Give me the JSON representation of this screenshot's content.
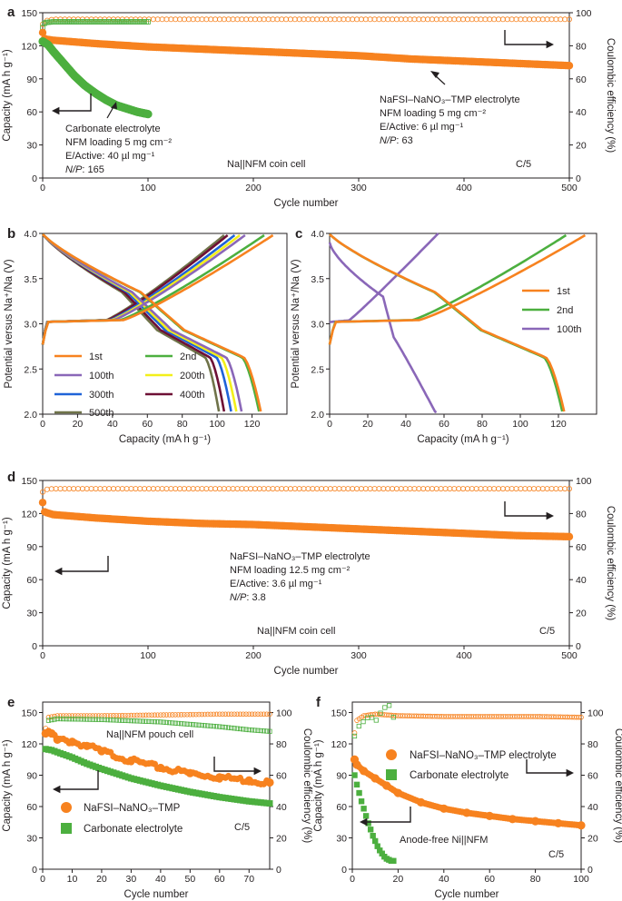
{
  "colors": {
    "orange": "#f7821f",
    "green": "#4caf3f",
    "purple": "#8a67b8",
    "blue": "#1f63d8",
    "yellow": "#f3ef1a",
    "darkred": "#6e1035",
    "olive": "#6f7349",
    "axis": "#231f20"
  },
  "chart_data": [
    {
      "panel": "a",
      "type": "scatter",
      "xlabel": "Cycle number",
      "ylabel": "Capacity (mA h g⁻¹)",
      "y2label": "Coulombic efficiency (%)",
      "xlim": [
        0,
        500
      ],
      "ylim": [
        0,
        150
      ],
      "y2lim": [
        0,
        100
      ],
      "xticks": [
        0,
        100,
        200,
        300,
        400,
        500
      ],
      "yticks": [
        0,
        30,
        60,
        90,
        120,
        150
      ],
      "y2ticks": [
        0,
        20,
        40,
        60,
        80,
        100
      ],
      "series": [
        {
          "name": "NaFSI–NaNO₃–TMP capacity",
          "color": "orange",
          "axis": "left",
          "x": [
            0,
            1,
            3,
            10,
            50,
            100,
            150,
            200,
            250,
            300,
            350,
            400,
            450,
            500
          ],
          "values": [
            132,
            127,
            126,
            125,
            122,
            119,
            117,
            115,
            113,
            111,
            108,
            106,
            104,
            102
          ]
        },
        {
          "name": "NaFSI–NaNO₃–TMP CE",
          "color": "orange",
          "axis": "right",
          "hollow": true,
          "x": [
            0,
            2,
            10,
            100,
            200,
            300,
            400,
            500
          ],
          "values": [
            93,
            95,
            96,
            96,
            96,
            96,
            96,
            96
          ]
        },
        {
          "name": "Carbonate capacity",
          "color": "green",
          "axis": "left",
          "x": [
            0,
            5,
            10,
            20,
            30,
            40,
            50,
            60,
            70,
            80,
            90,
            100
          ],
          "values": [
            124,
            121,
            115,
            104,
            93,
            84,
            77,
            71,
            66,
            63,
            60,
            58
          ]
        },
        {
          "name": "Carbonate CE",
          "color": "green",
          "axis": "right",
          "hollow": true,
          "x": [
            0,
            2,
            10,
            50,
            100
          ],
          "values": [
            91,
            94,
            94.5,
            94.5,
            94.5
          ]
        }
      ],
      "annotations": [
        "Carbonate electrolyte",
        "NFM loading 5 mg cm⁻²",
        "E/Active: 40 µl mg⁻¹",
        "N/P: 165",
        "Na||NFM coin cell",
        "C/5",
        "NaFSI–NaNO₃–TMP electrolyte",
        "NFM loading 5 mg cm⁻²",
        "E/Active: 6 µl mg⁻¹",
        "N/P: 63"
      ]
    },
    {
      "panel": "b",
      "type": "line",
      "xlabel": "Capacity (mA h g⁻¹)",
      "ylabel": "Potential versus Na⁺/Na (V)",
      "xlim": [
        0,
        140
      ],
      "ylim": [
        2,
        4
      ],
      "xticks": [
        0,
        20,
        40,
        60,
        80,
        100,
        120
      ],
      "yticks": [
        2.0,
        2.5,
        3.0,
        3.5,
        4.0
      ],
      "series": [
        {
          "name": "1st",
          "color": "orange",
          "charge_end": 132,
          "discharge_end": 125
        },
        {
          "name": "2nd",
          "color": "green",
          "charge_end": 127,
          "discharge_end": 124
        },
        {
          "name": "100th",
          "color": "purple",
          "charge_end": 116,
          "discharge_end": 114
        },
        {
          "name": "200th",
          "color": "yellow",
          "charge_end": 113,
          "discharge_end": 111
        },
        {
          "name": "300th",
          "color": "blue",
          "charge_end": 110,
          "discharge_end": 108
        },
        {
          "name": "400th",
          "color": "darkred",
          "charge_end": 106,
          "discharge_end": 104
        },
        {
          "name": "500th",
          "color": "olive",
          "charge_end": 104,
          "discharge_end": 101
        }
      ]
    },
    {
      "panel": "c",
      "type": "line",
      "xlabel": "Capacity (mA h g⁻¹)",
      "ylabel": "Potential versus Na⁺/Na (V)",
      "xlim": [
        0,
        140
      ],
      "ylim": [
        2,
        4
      ],
      "xticks": [
        0,
        20,
        40,
        60,
        80,
        100,
        120
      ],
      "yticks": [
        2.0,
        2.5,
        3.0,
        3.5,
        4.0
      ],
      "series": [
        {
          "name": "1st",
          "color": "orange",
          "charge_end": 134,
          "discharge_end": 123
        },
        {
          "name": "2nd",
          "color": "green",
          "charge_end": 124,
          "discharge_end": 122
        },
        {
          "name": "100th",
          "color": "purple",
          "charge_end": 57,
          "discharge_end": 56
        }
      ]
    },
    {
      "panel": "d",
      "type": "scatter",
      "xlabel": "Cycle number",
      "ylabel": "Capacity (mA h g⁻¹)",
      "y2label": "Coulombic efficiency (%)",
      "xlim": [
        0,
        500
      ],
      "ylim": [
        0,
        150
      ],
      "y2lim": [
        0,
        100
      ],
      "xticks": [
        0,
        100,
        200,
        300,
        400,
        500
      ],
      "yticks": [
        0,
        30,
        60,
        90,
        120,
        150
      ],
      "y2ticks": [
        0,
        20,
        40,
        60,
        80,
        100
      ],
      "series": [
        {
          "name": "NaFSI–NaNO₃–TMP capacity",
          "color": "orange",
          "axis": "left",
          "x": [
            0,
            1,
            3,
            10,
            50,
            100,
            150,
            200,
            250,
            300,
            350,
            400,
            450,
            500
          ],
          "values": [
            130,
            122,
            121,
            119,
            116,
            113,
            111,
            110,
            108,
            106,
            104,
            102,
            100,
            99
          ]
        },
        {
          "name": "NaFSI–NaNO₃–TMP CE",
          "color": "orange",
          "axis": "right",
          "hollow": true,
          "x": [
            0,
            2,
            10,
            100,
            200,
            300,
            400,
            500
          ],
          "values": [
            93,
            94.5,
            95,
            95,
            95,
            95,
            95,
            95
          ]
        }
      ],
      "annotations": [
        "NaFSI–NaNO₃–TMP electrolyte",
        "NFM loading 12.5 mg cm⁻²",
        "E/Active: 3.6 µl mg⁻¹",
        "N/P: 3.8",
        "Na||NFM coin cell",
        "C/5"
      ]
    },
    {
      "panel": "e",
      "type": "scatter",
      "xlabel": "Cycle number",
      "ylabel": "Capacity (mA h g⁻¹)",
      "y2label": "Coulombic efficiency (%)",
      "xlim": [
        0,
        77
      ],
      "ylim": [
        0,
        160
      ],
      "y2lim": [
        0,
        106.7
      ],
      "xticks": [
        0,
        10,
        20,
        30,
        40,
        50,
        60,
        70
      ],
      "yticks": [
        0,
        30,
        60,
        90,
        120,
        150
      ],
      "y2ticks": [
        0,
        20,
        40,
        60,
        80,
        100
      ],
      "legend": [
        "NaFSI–NaNO₃–TMP",
        "Carbonate electrolyte"
      ],
      "series": [
        {
          "name": "NaFSI–NaNO₃–TMP capacity",
          "color": "orange",
          "axis": "left",
          "x": [
            1,
            3,
            5,
            10,
            15,
            20,
            30,
            40,
            50,
            60,
            70,
            77
          ],
          "values": [
            130,
            130,
            124,
            122,
            118,
            113,
            104,
            97,
            92,
            88,
            85,
            83
          ]
        },
        {
          "name": "NaFSI–NaNO₃–TMP CE",
          "color": "orange",
          "axis": "right",
          "hollow": true,
          "x": [
            1,
            2,
            5,
            20,
            40,
            60,
            77
          ],
          "values": [
            90,
            97,
            98,
            98,
            98.5,
            99,
            99
          ]
        },
        {
          "name": "Carbonate capacity",
          "color": "green",
          "axis": "left",
          "x": [
            1,
            3,
            5,
            10,
            15,
            20,
            30,
            40,
            50,
            60,
            70,
            77
          ],
          "values": [
            115,
            114,
            112,
            107,
            101,
            96,
            87,
            80,
            74,
            69,
            65,
            63
          ]
        },
        {
          "name": "Carbonate CE",
          "color": "green",
          "axis": "right",
          "hollow": true,
          "x": [
            1,
            2,
            5,
            20,
            40,
            60,
            70,
            77
          ],
          "values": [
            87,
            95,
            96,
            95.5,
            94,
            91,
            89,
            88
          ]
        }
      ],
      "annotations": [
        "Na||NFM pouch cell",
        "C/5"
      ]
    },
    {
      "panel": "f",
      "type": "scatter",
      "xlabel": "Cycle number",
      "ylabel": "Capacity (mA h g⁻¹)",
      "y2label": "Coulombic efficiency (%)",
      "xlim": [
        0,
        100
      ],
      "ylim": [
        0,
        160
      ],
      "y2lim": [
        0,
        106.7
      ],
      "xticks": [
        0,
        20,
        40,
        60,
        80,
        100
      ],
      "yticks": [
        0,
        30,
        60,
        90,
        120,
        150
      ],
      "y2ticks": [
        0,
        20,
        40,
        60,
        80,
        100
      ],
      "legend": [
        "NaFSI–NaNO₃–TMP electrolyte",
        "Carbonate electrolyte"
      ],
      "series": [
        {
          "name": "NaFSI–NaNO₃–TMP capacity",
          "color": "orange",
          "axis": "left",
          "x": [
            1,
            2,
            5,
            10,
            15,
            20,
            30,
            40,
            50,
            60,
            70,
            80,
            90,
            100
          ],
          "values": [
            105,
            100,
            94,
            87,
            80,
            73,
            64,
            58,
            54,
            51,
            48,
            46,
            44,
            42
          ]
        },
        {
          "name": "NaFSI–NaNO₃–TMP CE",
          "color": "orange",
          "axis": "right",
          "hollow": true,
          "x": [
            1,
            2,
            5,
            10,
            20,
            40,
            60,
            80,
            100
          ],
          "values": [
            87,
            95,
            98,
            99,
            98,
            97.5,
            97.5,
            97.5,
            97
          ]
        },
        {
          "name": "Carbonate capacity",
          "color": "green",
          "axis": "left",
          "x": [
            1,
            2,
            3,
            4,
            5,
            6,
            7,
            8,
            9,
            10,
            11,
            12,
            13,
            14,
            15,
            16,
            17,
            18
          ],
          "values": [
            90,
            81,
            73,
            65,
            58,
            51,
            44,
            38,
            32,
            27,
            22,
            18,
            15,
            12,
            10,
            9,
            8,
            8
          ]
        },
        {
          "name": "Carbonate CE",
          "color": "green",
          "axis": "right",
          "hollow": true,
          "x": [
            1,
            2,
            4,
            6,
            8,
            10,
            12,
            14,
            16,
            18
          ],
          "values": [
            85,
            90,
            93,
            96,
            98,
            94,
            99,
            103,
            105,
            97
          ]
        }
      ],
      "annotations": [
        "Anode-free Ni||NFM",
        "C/5"
      ]
    }
  ],
  "labels": {
    "a": "a",
    "b": "b",
    "c": "c",
    "d": "d",
    "e": "e",
    "f": "f",
    "a_carb_title": "Carbonate electrolyte",
    "a_carb_loading": "NFM loading 5 mg cm⁻²",
    "a_carb_eactive": "E/Active: 40 µl mg⁻¹",
    "a_carb_np": "165",
    "a_tmp_title": "NaFSI–NaNO₃–TMP electrolyte",
    "a_tmp_loading": "NFM loading 5 mg cm⁻²",
    "a_tmp_eactive": "E/Active: 6 µl mg⁻¹",
    "a_tmp_np": "63",
    "coin_cell": "Na||NFM coin cell",
    "rate": "C/5",
    "np_prefix": "N/P",
    "d_title": "NaFSI–NaNO₃–TMP electrolyte",
    "d_loading": "NFM loading 12.5 mg cm⁻²",
    "d_eactive": "E/Active: 3.6 µl mg⁻¹",
    "d_np": "3.8",
    "e_pouch": "Na||NFM pouch cell",
    "f_anodefree": "Anode-free Ni||NFM"
  }
}
